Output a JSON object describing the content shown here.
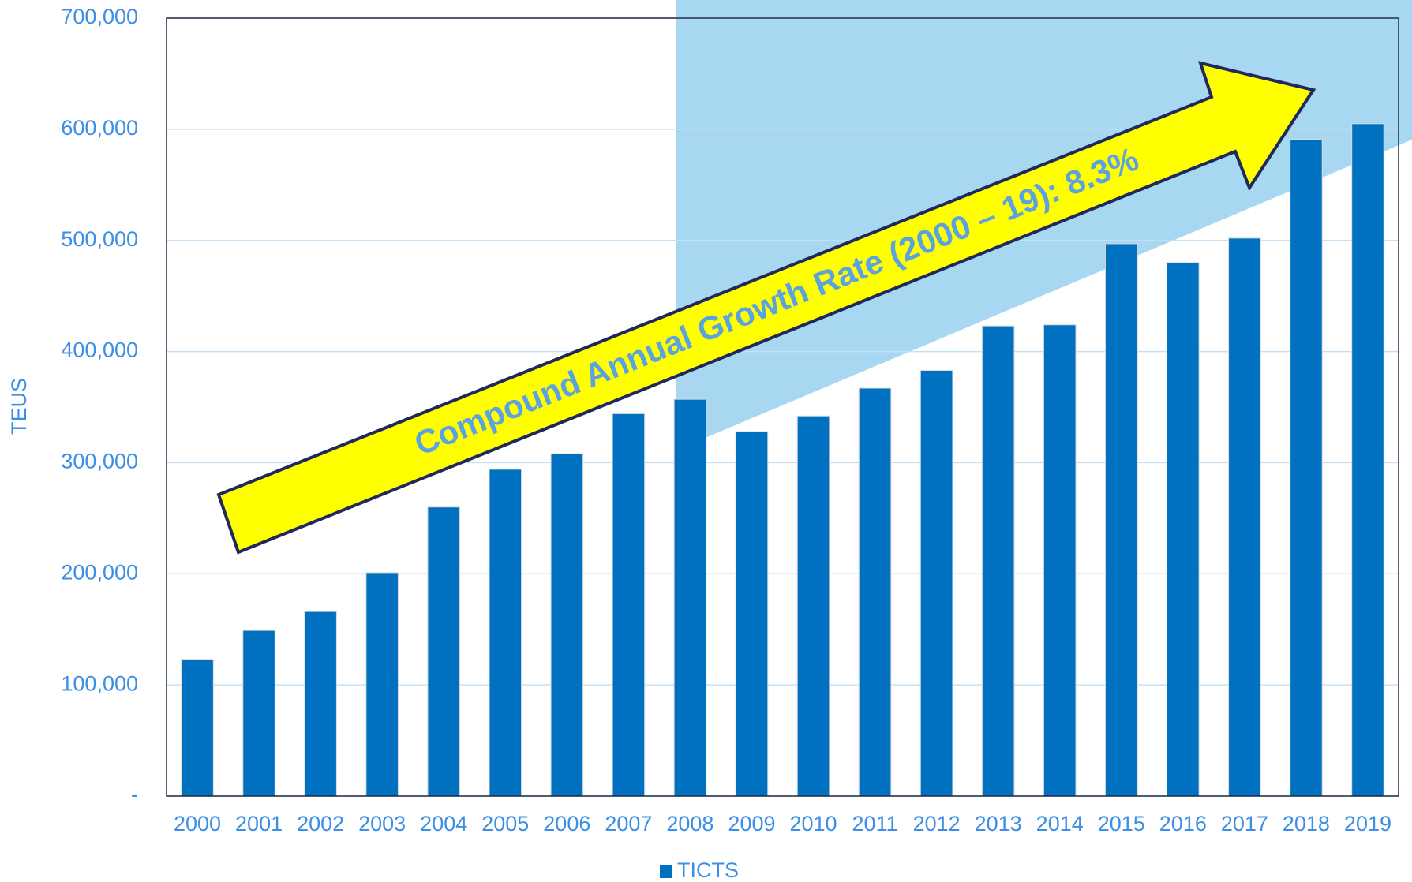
{
  "chart_data": {
    "type": "bar",
    "categories": [
      "2000",
      "2001",
      "2002",
      "2003",
      "2004",
      "2005",
      "2006",
      "2007",
      "2008",
      "2009",
      "2010",
      "2011",
      "2012",
      "2013",
      "2014",
      "2015",
      "2016",
      "2017",
      "2018",
      "2019"
    ],
    "series": [
      {
        "name": "TICTS",
        "color": "#0070c0",
        "values": [
          123000,
          149000,
          166000,
          201000,
          260000,
          294000,
          308000,
          344000,
          357000,
          328000,
          342000,
          367000,
          383000,
          423000,
          424000,
          497000,
          480000,
          502000,
          591000,
          605000
        ]
      }
    ],
    "y_label": "TEUS",
    "annotation": "Compound Annual Growth Rate (2000 – 19): 8.3%",
    "ylim": [
      0,
      700000
    ],
    "yticks": [
      {
        "value": 0,
        "label": "-"
      },
      {
        "value": 100000,
        "label": "100,000"
      },
      {
        "value": 200000,
        "label": "200,000"
      },
      {
        "value": 300000,
        "label": "300,000"
      },
      {
        "value": 400000,
        "label": "400,000"
      },
      {
        "value": 500000,
        "label": "500,000"
      },
      {
        "value": 600000,
        "label": "600,000"
      },
      {
        "value": 700000,
        "label": "700,000"
      }
    ],
    "grid": true,
    "legend": "bottom"
  }
}
